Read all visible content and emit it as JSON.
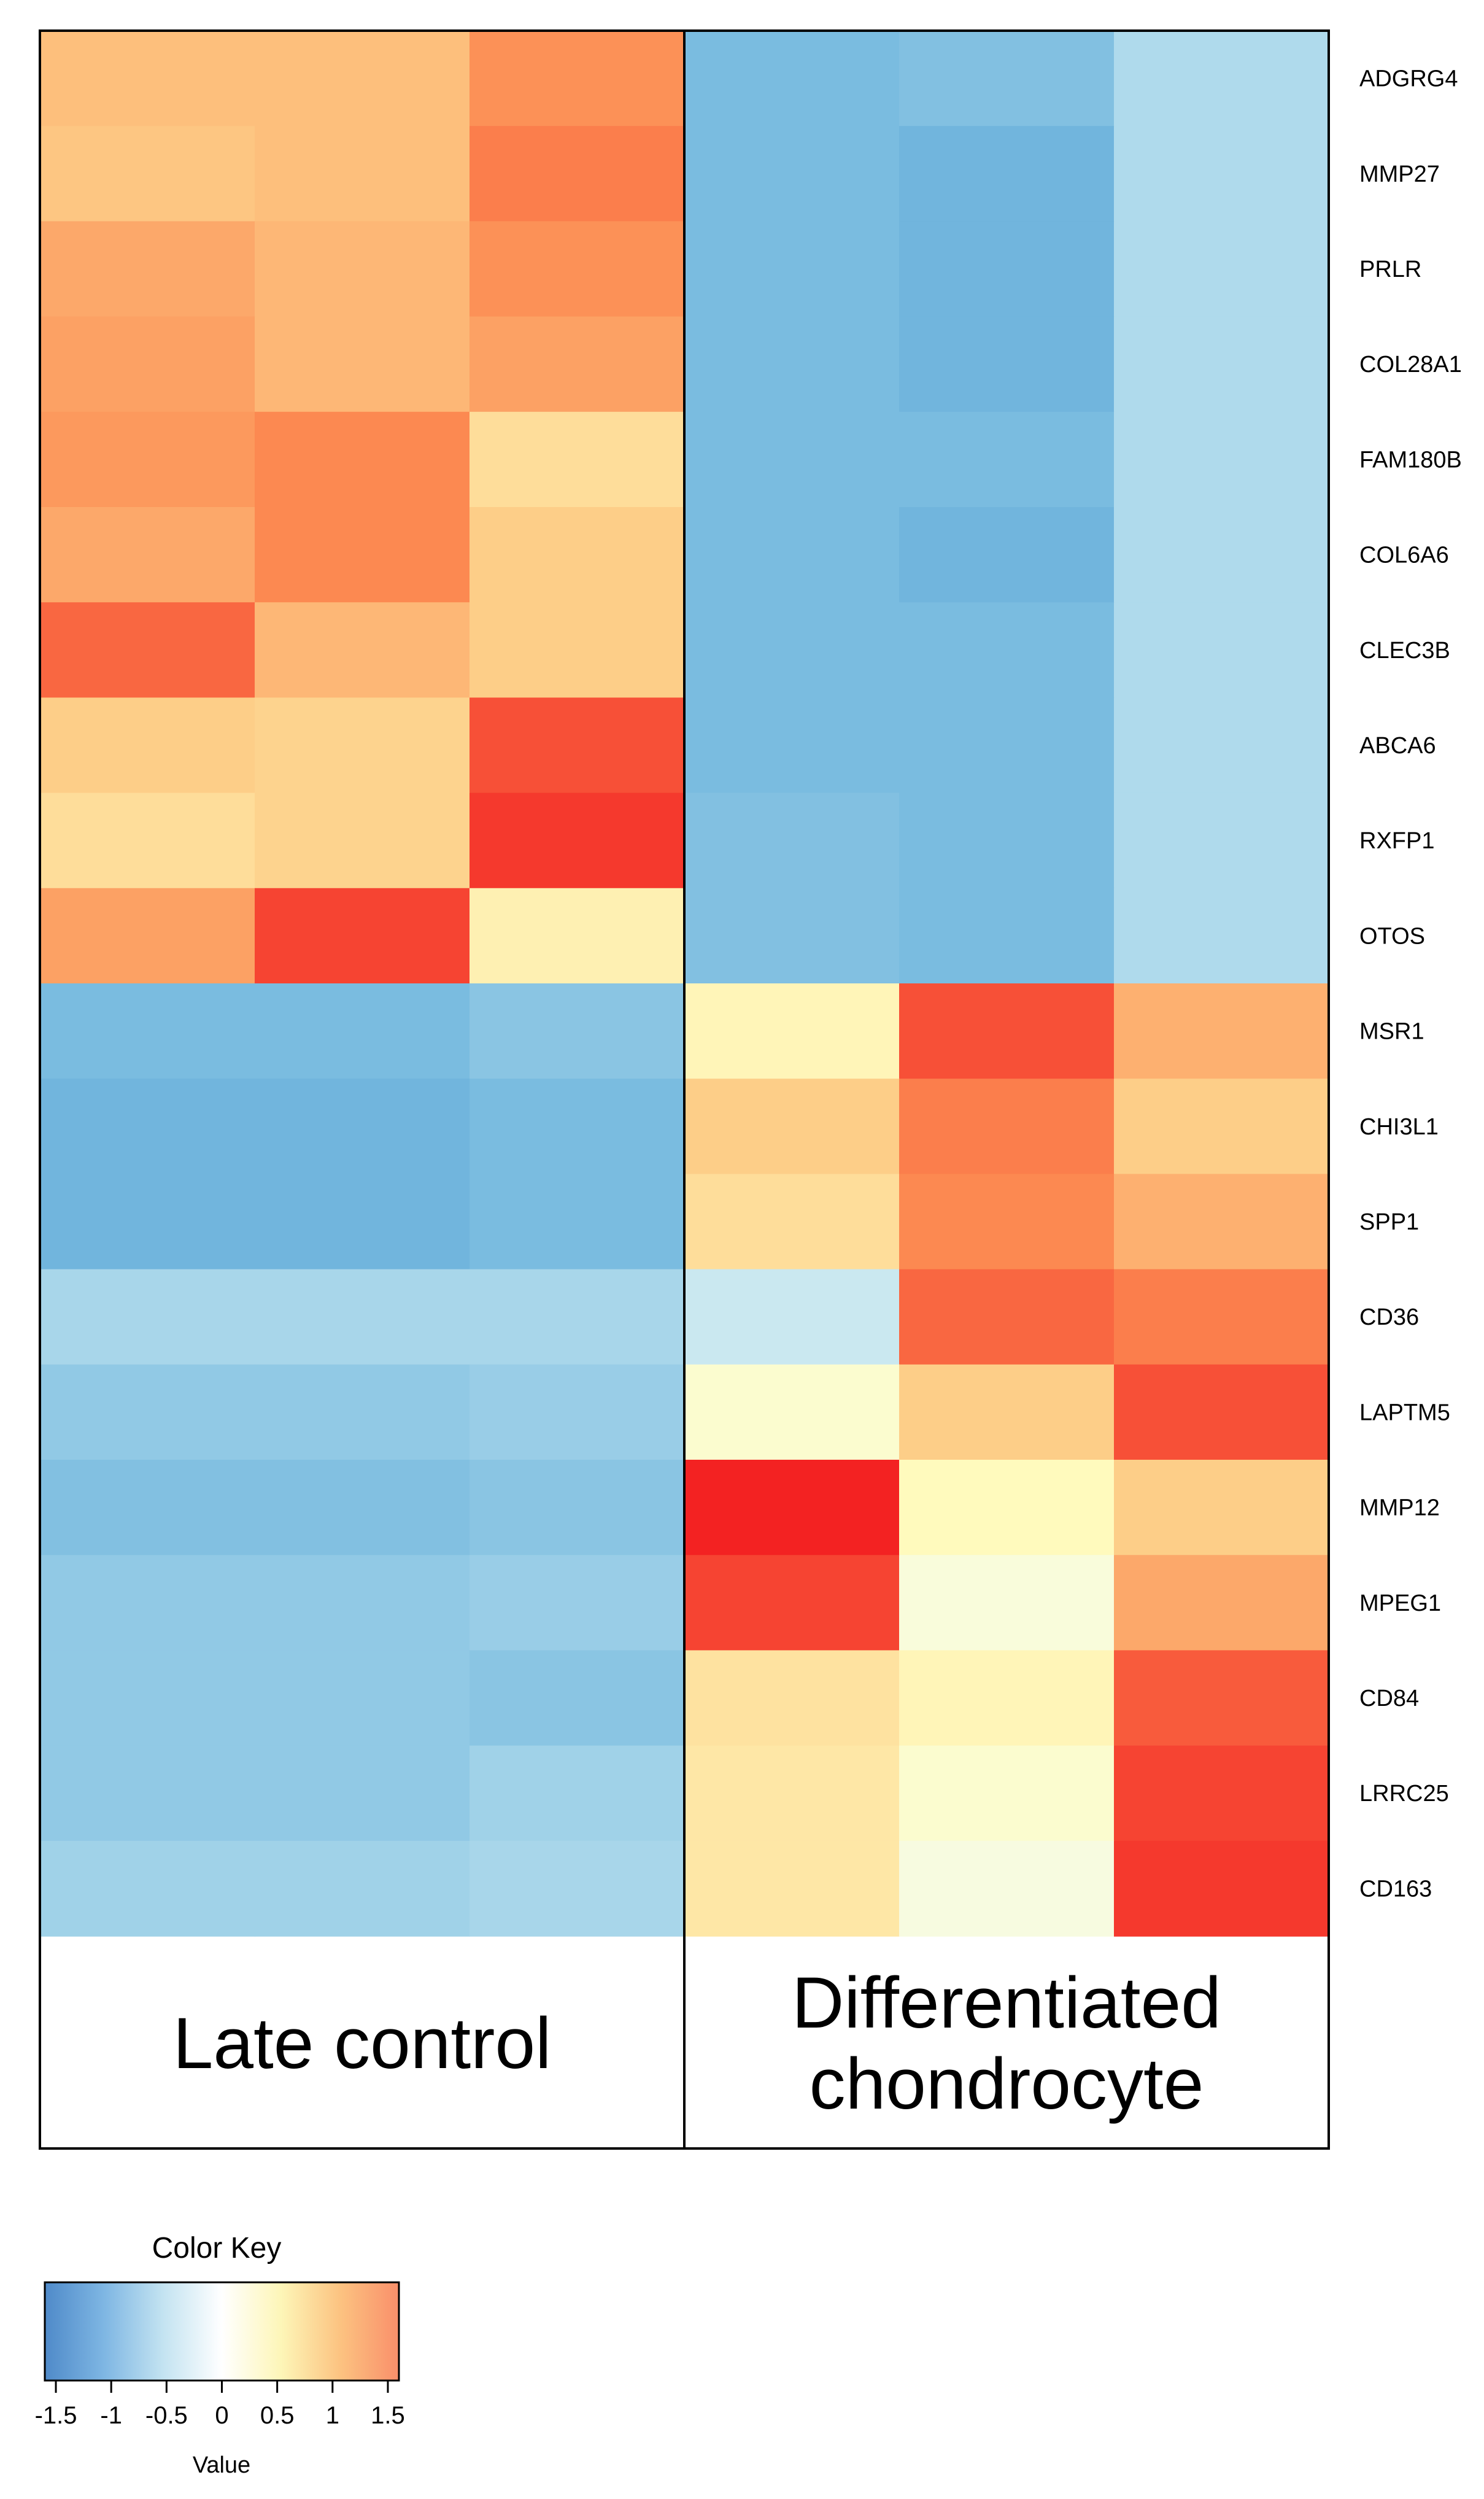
{
  "chart_data": {
    "type": "heatmap",
    "rows": [
      "ADGRG4",
      "MMP27",
      "PRLR",
      "COL28A1",
      "FAM180B",
      "COL6A6",
      "CLEC3B",
      "ABCA6",
      "RXFP1",
      "OTOS",
      "MSR1",
      "CHI3L1",
      "SPP1",
      "CD36",
      "LAPTM5",
      "MMP12",
      "MPEG1",
      "CD84",
      "LRRC25",
      "CD163"
    ],
    "groups": [
      {
        "label_lines": [
          "Late control"
        ],
        "columns": 3
      },
      {
        "label_lines": [
          "Differentiated",
          "chondrocyte"
        ],
        "columns": 3
      }
    ],
    "values": [
      [
        0.8,
        0.8,
        1.1,
        -1.1,
        -1.05,
        -0.75
      ],
      [
        0.75,
        0.8,
        1.2,
        -1.1,
        -1.2,
        -0.75
      ],
      [
        0.95,
        0.85,
        1.1,
        -1.1,
        -1.2,
        -0.75
      ],
      [
        1.0,
        0.85,
        1.0,
        -1.1,
        -1.2,
        -0.75
      ],
      [
        1.05,
        1.15,
        0.55,
        -1.1,
        -1.1,
        -0.75
      ],
      [
        0.95,
        1.15,
        0.7,
        -1.1,
        -1.2,
        -0.75
      ],
      [
        1.3,
        0.85,
        0.7,
        -1.1,
        -1.1,
        -0.75
      ],
      [
        0.7,
        0.65,
        1.4,
        -1.1,
        -1.1,
        -0.75
      ],
      [
        0.55,
        0.65,
        1.5,
        -1.05,
        -1.1,
        -0.75
      ],
      [
        1.0,
        1.45,
        0.35,
        -1.05,
        -1.1,
        -0.75
      ],
      [
        -1.1,
        -1.1,
        -1.0,
        0.3,
        1.4,
        0.9
      ],
      [
        -1.2,
        -1.2,
        -1.1,
        0.7,
        1.2,
        0.7
      ],
      [
        -1.2,
        -1.2,
        -1.1,
        0.55,
        1.15,
        0.9
      ],
      [
        -0.8,
        -0.8,
        -0.8,
        -0.55,
        1.3,
        1.2
      ],
      [
        -0.95,
        -0.95,
        -0.9,
        0.1,
        0.7,
        1.4
      ],
      [
        -1.05,
        -1.05,
        -1.0,
        1.65,
        0.25,
        0.7
      ],
      [
        -0.95,
        -0.95,
        -0.9,
        1.45,
        0.0,
        0.95
      ],
      [
        -0.95,
        -0.95,
        -1.0,
        0.5,
        0.3,
        1.35
      ],
      [
        -0.95,
        -0.95,
        -0.85,
        0.45,
        0.1,
        1.45
      ],
      [
        -0.85,
        -0.85,
        -0.8,
        0.45,
        -0.05,
        1.5
      ]
    ],
    "color_key": {
      "title": "Color Key",
      "xlabel": "Value",
      "range": [
        -1.6,
        1.6
      ],
      "ticks": [
        "-1.5",
        "-1",
        "-0.5",
        "0",
        "0.5",
        "1",
        "1.5"
      ],
      "tick_values": [
        -1.5,
        -1,
        -0.5,
        0,
        0.5,
        1,
        1.5
      ],
      "palette": [
        "#4f8ac9",
        "#7eb6e3",
        "#c3e3f1",
        "#ffffff",
        "#fdf6b8",
        "#fcc381",
        "#f98f6a"
      ]
    },
    "heatmap_palette": [
      "#5d9fd3",
      "#74b8de",
      "#b9e0ee",
      "#f2fbf5",
      "#fffcc0",
      "#fdd08a",
      "#fc8b52",
      "#f32222"
    ]
  }
}
